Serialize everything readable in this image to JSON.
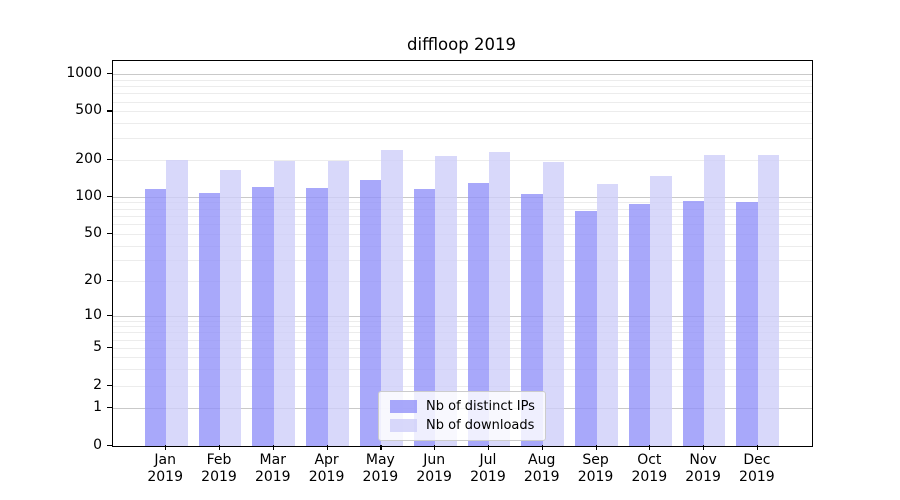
{
  "title": "diffloop 2019",
  "colors": {
    "bar_distinct_ips": "rgba(146,146,249,0.8)",
    "bar_downloads": "rgba(206,206,249,0.8)",
    "grid_major": "#c9c9c9",
    "grid_minor": "#ececec",
    "spine": "#000000"
  },
  "chart_data": {
    "type": "bar",
    "title": "diffloop 2019",
    "categories": [
      "Jan 2019",
      "Feb 2019",
      "Mar 2019",
      "Apr 2019",
      "May 2019",
      "Jun 2019",
      "Jul 2019",
      "Aug 2019",
      "Sep 2019",
      "Oct 2019",
      "Nov 2019",
      "Dec 2019"
    ],
    "series": [
      {
        "name": "Nb of distinct IPs",
        "color": "rgba(146,146,249,0.8)",
        "values": [
          115,
          107,
          121,
          118,
          136,
          115,
          130,
          106,
          77,
          87,
          92,
          91
        ]
      },
      {
        "name": "Nb of downloads",
        "color": "rgba(206,206,249,0.8)",
        "values": [
          200,
          166,
          196,
          196,
          242,
          213,
          230,
          192,
          126,
          146,
          220,
          220
        ]
      }
    ],
    "xlabel": "",
    "ylabel": "",
    "yscale": "symlog",
    "yticks": [
      0,
      1,
      2,
      5,
      10,
      20,
      50,
      100,
      200,
      500,
      1000
    ],
    "ylim": [
      0,
      1300
    ],
    "grid": true,
    "legend_position": "lower center"
  }
}
